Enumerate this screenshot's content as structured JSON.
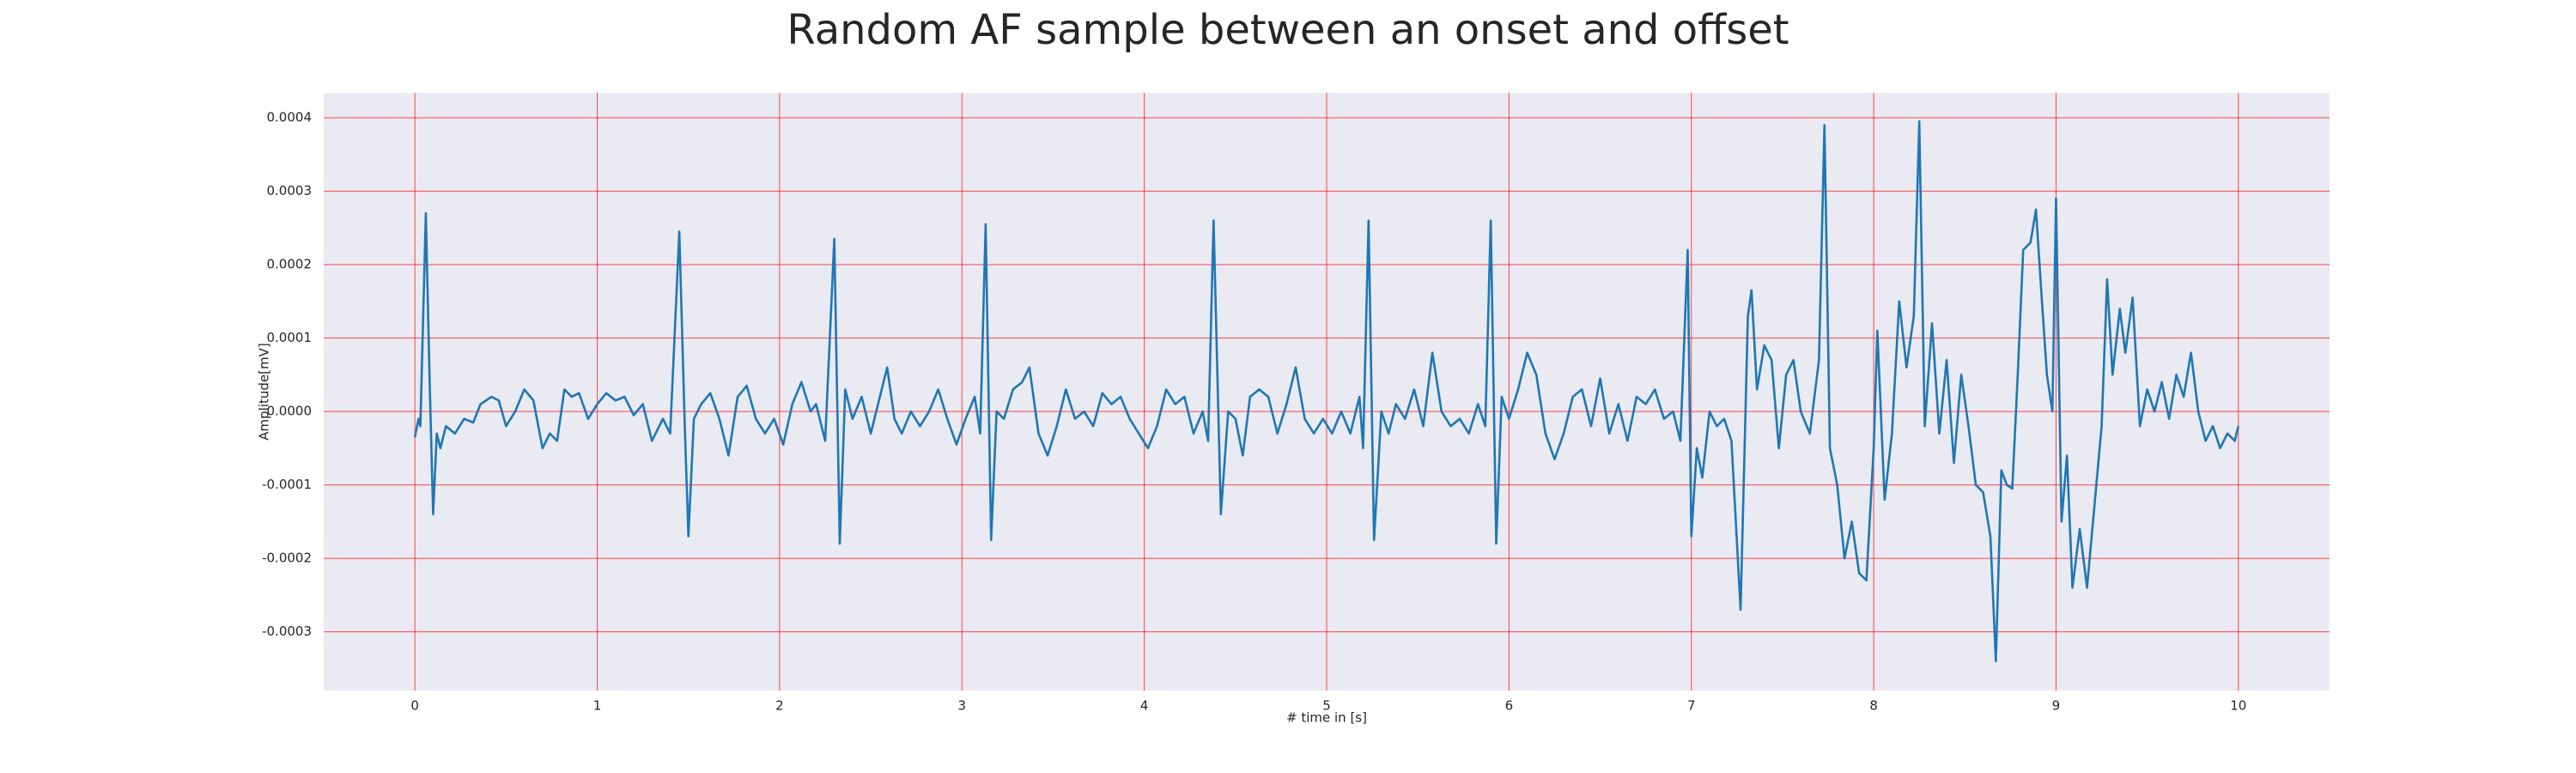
{
  "chart_data": {
    "type": "line",
    "title": "Random AF sample between an onset and offset",
    "x_label": "# time in [s]",
    "y_label": "Amplitude[mV]",
    "xlim": [
      -0.5,
      10.5
    ],
    "ylim": [
      -0.00038,
      0.000434
    ],
    "xticks": [
      0,
      1,
      2,
      3,
      4,
      5,
      6,
      7,
      8,
      9,
      10
    ],
    "yticks": [
      -0.0003,
      -0.0002,
      -0.0001,
      {
        "value": 0,
        "label": "0.0000"
      },
      0.0001,
      0.0002,
      0.0003,
      0.0004
    ],
    "grid": true,
    "grid_color": "#ff0000",
    "background": "#eaeaf2",
    "color": "#1f77b4",
    "x": [
      0.0,
      0.02,
      0.03,
      0.06,
      0.08,
      0.1,
      0.12,
      0.14,
      0.17,
      0.22,
      0.27,
      0.32,
      0.36,
      0.42,
      0.46,
      0.5,
      0.55,
      0.6,
      0.65,
      0.7,
      0.74,
      0.78,
      0.82,
      0.86,
      0.9,
      0.95,
      1.0,
      1.05,
      1.1,
      1.15,
      1.2,
      1.25,
      1.3,
      1.36,
      1.4,
      1.45,
      1.48,
      1.5,
      1.53,
      1.57,
      1.62,
      1.67,
      1.72,
      1.77,
      1.82,
      1.87,
      1.92,
      1.97,
      2.02,
      2.07,
      2.12,
      2.17,
      2.2,
      2.25,
      2.3,
      2.33,
      2.36,
      2.4,
      2.45,
      2.5,
      2.55,
      2.59,
      2.63,
      2.67,
      2.72,
      2.77,
      2.82,
      2.87,
      2.92,
      2.97,
      3.02,
      3.07,
      3.1,
      3.13,
      3.16,
      3.19,
      3.23,
      3.28,
      3.33,
      3.37,
      3.42,
      3.47,
      3.52,
      3.57,
      3.62,
      3.67,
      3.72,
      3.77,
      3.82,
      3.87,
      3.92,
      3.97,
      4.02,
      4.07,
      4.12,
      4.17,
      4.22,
      4.27,
      4.32,
      4.35,
      4.38,
      4.42,
      4.46,
      4.5,
      4.54,
      4.58,
      4.63,
      4.68,
      4.73,
      4.78,
      4.83,
      4.88,
      4.93,
      4.98,
      5.03,
      5.08,
      5.13,
      5.18,
      5.2,
      5.23,
      5.26,
      5.3,
      5.34,
      5.38,
      5.43,
      5.48,
      5.53,
      5.58,
      5.63,
      5.68,
      5.73,
      5.78,
      5.83,
      5.87,
      5.9,
      5.93,
      5.96,
      6.0,
      6.05,
      6.1,
      6.15,
      6.2,
      6.25,
      6.3,
      6.35,
      6.4,
      6.45,
      6.5,
      6.55,
      6.6,
      6.65,
      6.7,
      6.75,
      6.8,
      6.85,
      6.9,
      6.94,
      6.98,
      7.0,
      7.03,
      7.06,
      7.1,
      7.14,
      7.18,
      7.22,
      7.27,
      7.31,
      7.33,
      7.36,
      7.4,
      7.44,
      7.48,
      7.52,
      7.56,
      7.6,
      7.65,
      7.7,
      7.73,
      7.76,
      7.8,
      7.84,
      7.88,
      7.92,
      7.96,
      8.0,
      8.02,
      8.06,
      8.1,
      8.14,
      8.18,
      8.22,
      8.25,
      8.28,
      8.32,
      8.36,
      8.4,
      8.44,
      8.48,
      8.52,
      8.56,
      8.6,
      8.64,
      8.67,
      8.7,
      8.73,
      8.76,
      8.79,
      8.82,
      8.86,
      8.89,
      8.92,
      8.95,
      8.98,
      9.0,
      9.03,
      9.06,
      9.09,
      9.13,
      9.17,
      9.21,
      9.25,
      9.28,
      9.31,
      9.35,
      9.38,
      9.42,
      9.46,
      9.5,
      9.54,
      9.58,
      9.62,
      9.66,
      9.7,
      9.74,
      9.78,
      9.82,
      9.86,
      9.9,
      9.94,
      9.98,
      10.0
    ],
    "values": [
      -3.5e-05,
      -1e-05,
      -2e-05,
      0.00027,
      5e-05,
      -0.00014,
      -3e-05,
      -5e-05,
      -2e-05,
      -3e-05,
      -1e-05,
      -1.5e-05,
      1e-05,
      2e-05,
      1.5e-05,
      -2e-05,
      0,
      3e-05,
      1.5e-05,
      -5e-05,
      -3e-05,
      -4e-05,
      3e-05,
      2e-05,
      2.5e-05,
      -1e-05,
      1e-05,
      2.5e-05,
      1.5e-05,
      2e-05,
      -5e-06,
      1e-05,
      -4e-05,
      -1e-05,
      -3e-05,
      0.000245,
      -2e-05,
      -0.00017,
      -1e-05,
      1e-05,
      2.5e-05,
      -1e-05,
      -6e-05,
      2e-05,
      3.5e-05,
      -1e-05,
      -3e-05,
      -1e-05,
      -4.5e-05,
      1e-05,
      4e-05,
      0,
      1e-05,
      -4e-05,
      0.000235,
      -0.00018,
      3e-05,
      -1e-05,
      2e-05,
      -3e-05,
      2e-05,
      6e-05,
      -1e-05,
      -3e-05,
      0,
      -2e-05,
      0,
      3e-05,
      -1e-05,
      -4.5e-05,
      -1e-05,
      2e-05,
      -3e-05,
      0.000255,
      -0.000175,
      0,
      -1e-05,
      3e-05,
      4e-05,
      6e-05,
      -3e-05,
      -6e-05,
      -2e-05,
      3e-05,
      -1e-05,
      0,
      -2e-05,
      2.5e-05,
      1e-05,
      2e-05,
      -1e-05,
      -3e-05,
      -5e-05,
      -2e-05,
      3e-05,
      1e-05,
      2e-05,
      -3e-05,
      0,
      -4e-05,
      0.00026,
      -0.00014,
      0,
      -1e-05,
      -6e-05,
      2e-05,
      3e-05,
      2e-05,
      -3e-05,
      1e-05,
      6e-05,
      -1e-05,
      -3e-05,
      -1e-05,
      -3e-05,
      0,
      -3e-05,
      2e-05,
      -5e-05,
      0.00026,
      -0.000175,
      0,
      -3e-05,
      1e-05,
      -1e-05,
      3e-05,
      -2e-05,
      8e-05,
      0,
      -2e-05,
      -1e-05,
      -3e-05,
      1e-05,
      -2e-05,
      0.00026,
      -0.00018,
      2e-05,
      -1e-05,
      3e-05,
      8e-05,
      5e-05,
      -3e-05,
      -6.5e-05,
      -3e-05,
      2e-05,
      3e-05,
      -2e-05,
      4.5e-05,
      -3e-05,
      1e-05,
      -4e-05,
      2e-05,
      1e-05,
      3e-05,
      -1e-05,
      0,
      -4e-05,
      0.00022,
      -0.00017,
      -5e-05,
      -9e-05,
      0,
      -2e-05,
      -1e-05,
      -4e-05,
      -0.00027,
      0.00013,
      0.000165,
      3e-05,
      9e-05,
      7e-05,
      -5e-05,
      5e-05,
      7e-05,
      0,
      -3e-05,
      7e-05,
      0.00039,
      -5e-05,
      -0.0001,
      -0.0002,
      -0.00015,
      -0.00022,
      -0.00023,
      -5e-05,
      0.00011,
      -0.00012,
      -3e-05,
      0.00015,
      6e-05,
      0.00013,
      0.000395,
      -2e-05,
      0.00012,
      -3e-05,
      7e-05,
      -7e-05,
      5e-05,
      -2e-05,
      -0.0001,
      -0.00011,
      -0.00017,
      -0.00034,
      -8e-05,
      -0.0001,
      -0.000105,
      5e-05,
      0.00022,
      0.00023,
      0.000275,
      0.00016,
      5e-05,
      0,
      0.00029,
      -0.00015,
      -6e-05,
      -0.00024,
      -0.00016,
      -0.00024,
      -0.00013,
      -2e-05,
      0.00018,
      5e-05,
      0.00014,
      8e-05,
      0.000155,
      -2e-05,
      3e-05,
      0,
      4e-05,
      -1e-05,
      5e-05,
      2e-05,
      8e-05,
      0,
      -4e-05,
      -2e-05,
      -5e-05,
      -3e-05,
      -4e-05,
      -2e-05
    ]
  }
}
